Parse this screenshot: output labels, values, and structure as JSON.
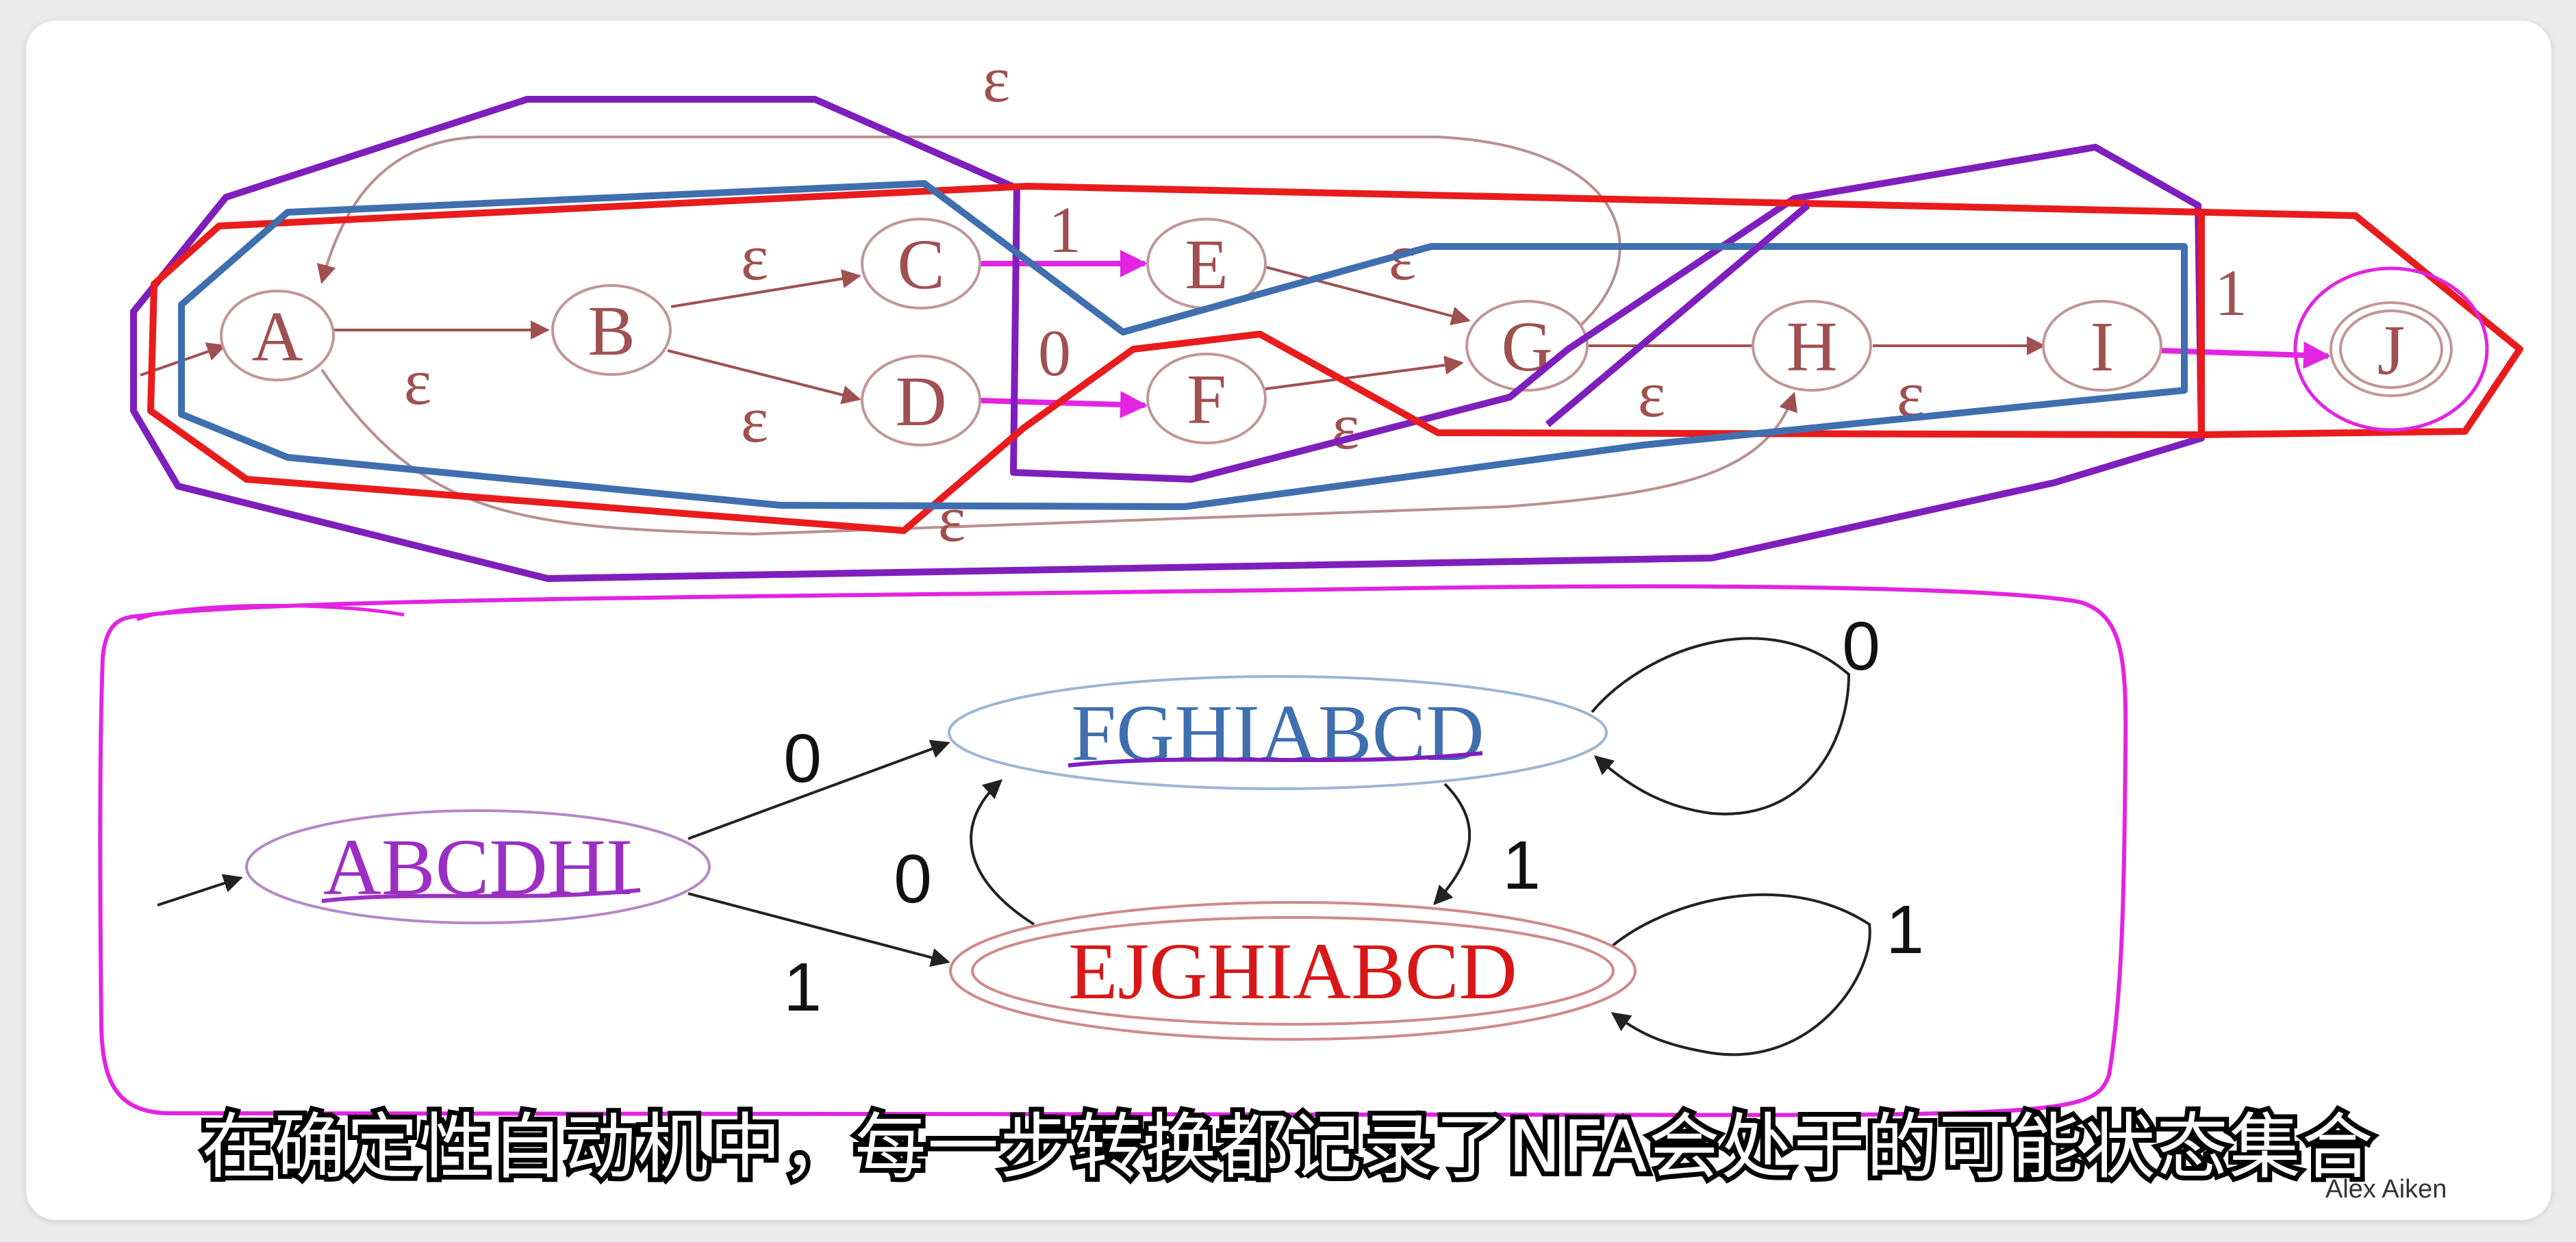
{
  "nfa": {
    "states": [
      "A",
      "B",
      "C",
      "D",
      "E",
      "F",
      "G",
      "H",
      "I",
      "J"
    ],
    "epsilon": "ε",
    "label_0": "0",
    "label_1": "1"
  },
  "dfa": {
    "states": [
      "ABCDHI",
      "FGHIABCD",
      "EJGHIABCD"
    ],
    "labels": {
      "start_to_fg": "0",
      "start_to_ej": "1",
      "fg_loop": "0",
      "fg_to_ej": "1",
      "ej_to_fg": "0",
      "ej_loop": "1"
    }
  },
  "subtitle": "在确定性自动机中，每一步转换都记录了NFA会处于的可能状态集合",
  "credit": "Alex Aiken",
  "colors": {
    "nfa_ink": "#a05050",
    "purple": "#7e1fbd",
    "blue": "#3f6faf",
    "red": "#e81c1c",
    "magenta": "#e224e2",
    "dfa_purple": "#9b2fc4",
    "dfa_blue": "#3f6faf",
    "dfa_red": "#d81818"
  }
}
